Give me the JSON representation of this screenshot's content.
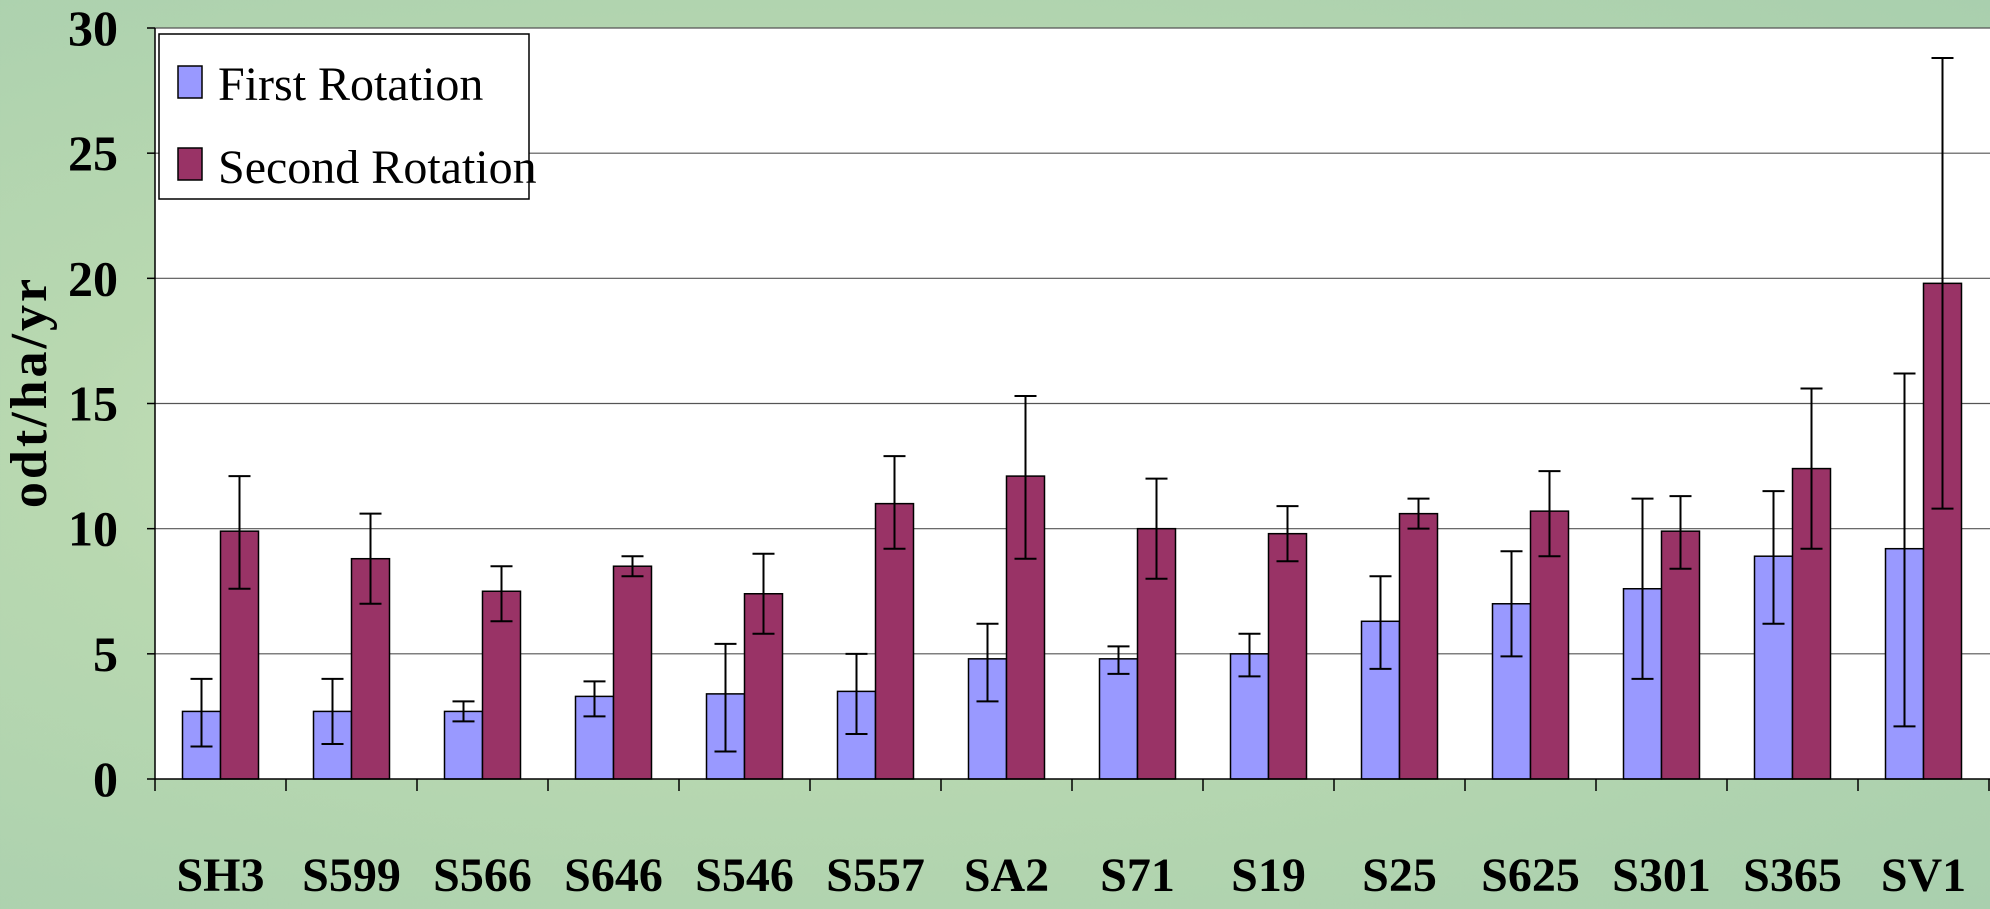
{
  "chart_data": {
    "type": "bar",
    "ylabel": "odt/ha/yr",
    "ylim": [
      0,
      30
    ],
    "yticks": [
      0,
      5,
      10,
      15,
      20,
      25,
      30
    ],
    "grid": true,
    "legend_position": "top-left",
    "categories": [
      "SH3",
      "S599",
      "S566",
      "S646",
      "S546",
      "S557",
      "SA2",
      "S71",
      "S19",
      "S25",
      "S625",
      "S301",
      "S365",
      "SV1"
    ],
    "series": [
      {
        "name": "First Rotation",
        "color": "#9999ff",
        "values": [
          2.7,
          2.7,
          2.7,
          3.3,
          3.4,
          3.5,
          4.8,
          4.8,
          5.0,
          6.3,
          7.0,
          7.6,
          8.9,
          9.2
        ],
        "err_low": [
          1.3,
          1.4,
          2.3,
          2.5,
          1.1,
          1.8,
          3.1,
          4.2,
          4.1,
          4.4,
          4.9,
          4.0,
          6.2,
          2.1
        ],
        "err_high": [
          4.0,
          4.0,
          3.1,
          3.9,
          5.4,
          5.0,
          6.2,
          5.3,
          5.8,
          8.1,
          9.1,
          11.2,
          11.5,
          16.2
        ]
      },
      {
        "name": "Second Rotation",
        "color": "#993366",
        "values": [
          9.9,
          8.8,
          7.5,
          8.5,
          7.4,
          11.0,
          12.1,
          10.0,
          9.8,
          10.6,
          10.7,
          9.9,
          12.4,
          19.8
        ],
        "err_low": [
          7.6,
          7.0,
          6.3,
          8.1,
          5.8,
          9.2,
          8.8,
          8.0,
          8.7,
          10.0,
          8.9,
          8.4,
          9.2,
          10.8
        ],
        "err_high": [
          12.1,
          10.6,
          8.5,
          8.9,
          9.0,
          12.9,
          15.3,
          12.0,
          10.9,
          11.2,
          12.3,
          11.3,
          15.6,
          28.8
        ]
      }
    ]
  }
}
